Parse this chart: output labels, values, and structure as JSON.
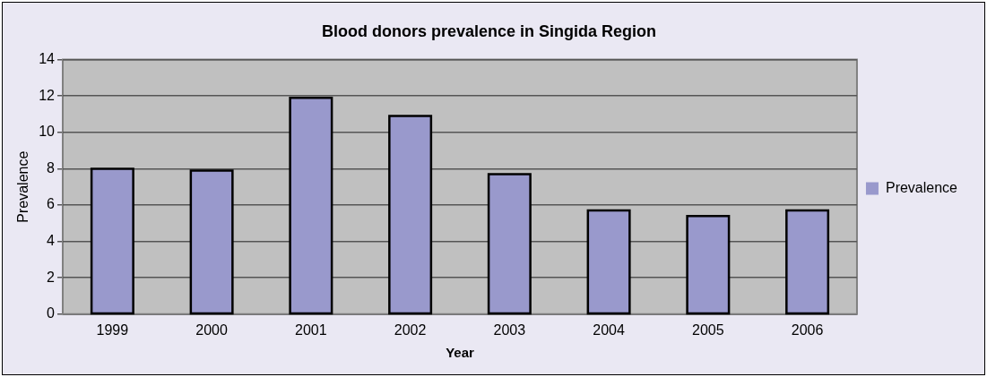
{
  "chart_data": {
    "type": "bar",
    "title": "Blood donors prevalence in Singida Region",
    "xlabel": "Year",
    "ylabel": "Prevalence",
    "categories": [
      "1999",
      "2000",
      "2001",
      "2002",
      "2003",
      "2004",
      "2005",
      "2006"
    ],
    "series": [
      {
        "name": "Prevalence",
        "color": "#9999cc",
        "values": [
          8.0,
          7.9,
          11.9,
          10.9,
          7.7,
          5.7,
          5.4,
          5.7
        ]
      }
    ],
    "ylim": [
      0,
      14
    ],
    "yticks": [
      0,
      2,
      4,
      6,
      8,
      10,
      12,
      14
    ],
    "grid": "y",
    "legend": "right"
  }
}
